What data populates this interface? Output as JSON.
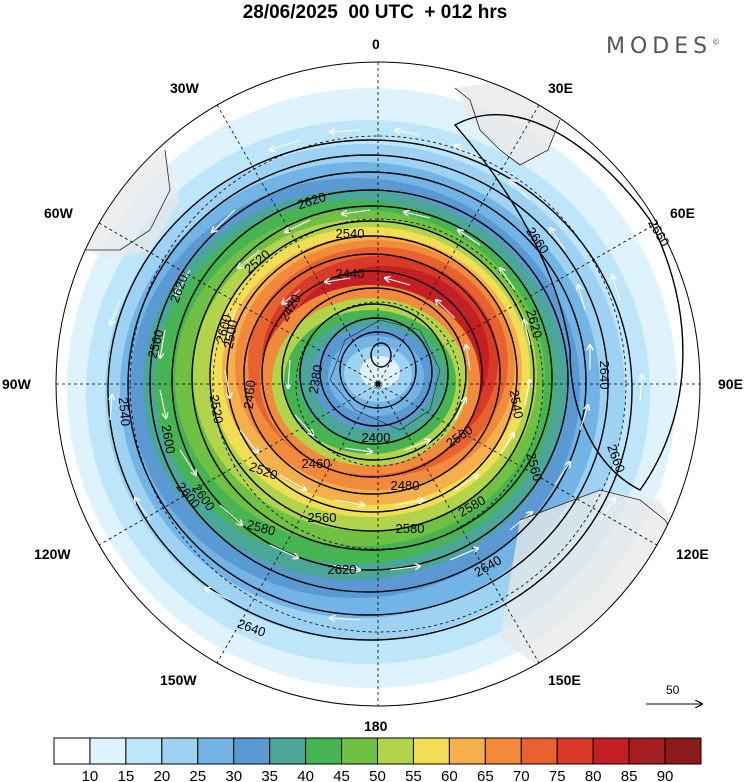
{
  "title": "28/06/2025  00 UTC  + 012 hrs",
  "brand": "MODES",
  "brand_mark": "©",
  "projection": "polar-stereographic-south",
  "map_labels": {
    "top": "0",
    "top_right": "30E",
    "right_upper": "60E",
    "right": "90E",
    "right_lower": "120E",
    "bottom_right": "150E",
    "bottom": "180",
    "bottom_left": "150W",
    "left_lower": "120W",
    "left": "90W",
    "left_upper": "60W",
    "top_left": "30W"
  },
  "contour_labels": [
    "2620",
    "2540",
    "2440",
    "2420",
    "2380",
    "2400",
    "2460",
    "2480",
    "2520",
    "2560",
    "2580",
    "2600",
    "2620",
    "2640",
    "2660",
    "2660",
    "2660",
    "2640",
    "2620",
    "2560",
    "2600",
    "2580",
    "2580",
    "2560",
    "2520",
    "2540",
    "2520",
    "2460",
    "2600",
    "2620",
    "2640",
    "2540",
    "2500",
    "2560",
    "2600"
  ],
  "vector_reference": "50",
  "colorbar": {
    "ticks": [
      "10",
      "15",
      "20",
      "25",
      "30",
      "35",
      "40",
      "45",
      "50",
      "55",
      "60",
      "65",
      "70",
      "75",
      "80",
      "85",
      "90"
    ],
    "colors": [
      "#ffffff",
      "#dff3fd",
      "#bde6fa",
      "#9dd2f3",
      "#73b4e6",
      "#5a99d2",
      "#4aa696",
      "#46b452",
      "#70c143",
      "#b2d44a",
      "#f2de55",
      "#f6b04b",
      "#f28a3c",
      "#e8622f",
      "#d93a28",
      "#c51f26",
      "#a51f22",
      "#8a1a1b"
    ]
  }
}
